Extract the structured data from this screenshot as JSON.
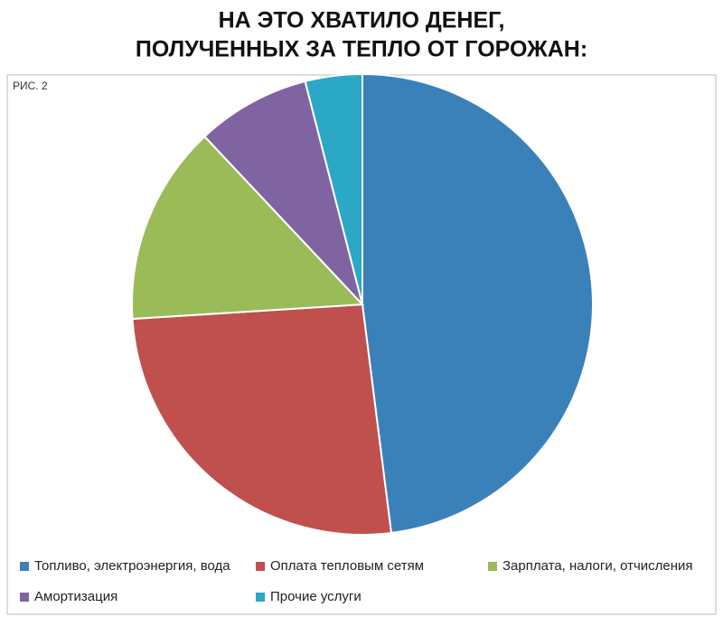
{
  "chart_data": {
    "type": "pie",
    "title": [
      "НА ЭТО ХВАТИЛО ДЕНЕГ,",
      "ПОЛУЧЕННЫХ ЗА ТЕПЛО ОТ ГОРОЖАН:"
    ],
    "figure_label": "РИС. 2",
    "series": [
      {
        "name": "Топливо, электроэнергия, вода",
        "color": "#3a81ba",
        "values": [
          48
        ]
      },
      {
        "name": "Оплата тепловым сетям",
        "color": "#c0504d",
        "values": [
          26
        ]
      },
      {
        "name": "Зарплата, налоги, отчисления",
        "color": "#9bbb59",
        "values": [
          14
        ]
      },
      {
        "name": "Амортизация",
        "color": "#8064a2",
        "values": [
          8
        ]
      },
      {
        "name": "Прочие услуги",
        "color": "#2ba8c6",
        "values": [
          4
        ]
      }
    ],
    "legend": "bottom"
  }
}
